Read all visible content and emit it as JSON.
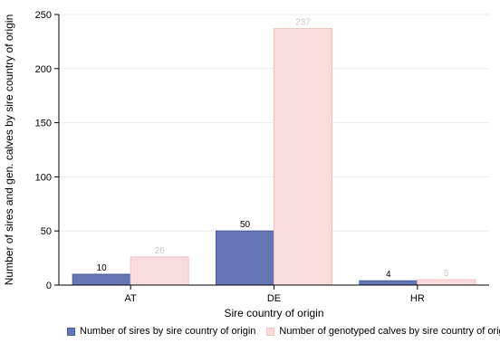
{
  "chart_data": {
    "type": "bar",
    "categories": [
      "AT",
      "DE",
      "HR"
    ],
    "series": [
      {
        "name": "Number of sires by sire country of origin",
        "values": [
          10,
          50,
          4
        ],
        "color": "#6675b3",
        "stroke": "#4a5a9c",
        "label_color": "#000000"
      },
      {
        "name": "Number of genotyped calves by sire country of origin",
        "values": [
          26,
          237,
          5
        ],
        "color": "#f8dcdc",
        "stroke": "#f0c4c4",
        "label_color": "#c8c8c8"
      }
    ],
    "xlabel": "Sire country of origin",
    "ylabel": "Number of sires and gen. calves by sire country of origin",
    "ylim": [
      0,
      250
    ],
    "yticks": [
      "0",
      "50",
      "100",
      "150",
      "200",
      "250"
    ],
    "grid": true,
    "legend_position": "bottom"
  }
}
